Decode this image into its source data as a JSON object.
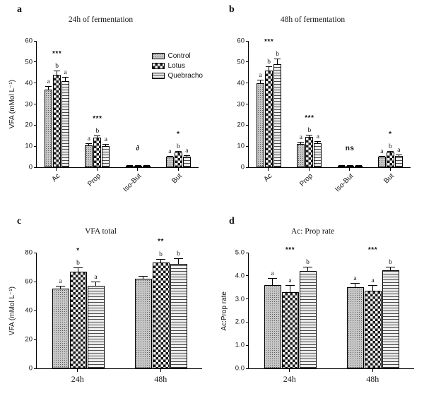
{
  "chart_data": [
    {
      "panel": "a",
      "type": "bar",
      "title": "24h of fermentation",
      "ylabel": "VFA (mMol L⁻¹)",
      "ylim": [
        0,
        60
      ],
      "yticks": [
        "0",
        "10",
        "20",
        "30",
        "40",
        "50",
        "60"
      ],
      "categories": [
        "Ac",
        "Prop",
        "Iso-But",
        "But"
      ],
      "series": [
        {
          "name": "Control",
          "pattern": "fine-checker",
          "values": [
            37,
            10.5,
            0.6,
            5
          ],
          "errors": [
            1.5,
            1,
            0.2,
            0.5
          ],
          "letters": [
            "a",
            "a",
            "",
            "a"
          ]
        },
        {
          "name": "Lotus",
          "pattern": "checkerboard",
          "values": [
            44,
            14,
            0.7,
            7
          ],
          "errors": [
            2,
            1,
            0.2,
            0.8
          ],
          "letters": [
            "b",
            "b",
            "",
            "b"
          ]
        },
        {
          "name": "Quebracho",
          "pattern": "horizontal-stripes",
          "values": [
            41,
            10,
            0.6,
            5
          ],
          "errors": [
            2,
            1,
            0.2,
            0.6
          ],
          "letters": [
            "a",
            "a",
            "",
            "a"
          ]
        }
      ],
      "group_sig": [
        "***",
        "***",
        "∂",
        "*"
      ],
      "legend": true
    },
    {
      "panel": "b",
      "type": "bar",
      "title": "48h of fermentation",
      "ylabel": "",
      "ylim": [
        0,
        60
      ],
      "yticks": [
        "0",
        "10",
        "20",
        "30",
        "40",
        "50",
        "60"
      ],
      "categories": [
        "Ac",
        "Prop",
        "Iso-But",
        "But"
      ],
      "series": [
        {
          "name": "Control",
          "pattern": "fine-checker",
          "values": [
            40,
            11,
            0.7,
            5
          ],
          "errors": [
            1.5,
            1,
            0.2,
            0.5
          ],
          "letters": [
            "a",
            "a",
            "",
            "a"
          ]
        },
        {
          "name": "Lotus",
          "pattern": "checkerboard",
          "values": [
            46,
            14.5,
            0.8,
            7
          ],
          "errors": [
            2,
            1,
            0.2,
            0.8
          ],
          "letters": [
            "b",
            "b",
            "",
            "b"
          ]
        },
        {
          "name": "Quebracho",
          "pattern": "horizontal-stripes",
          "values": [
            49,
            11.5,
            0.7,
            5.5
          ],
          "errors": [
            2.5,
            1,
            0.2,
            0.6
          ],
          "letters": [
            "b",
            "a",
            "",
            "a"
          ]
        }
      ],
      "group_sig": [
        "***",
        "***",
        "ns",
        "*"
      ],
      "legend": false
    },
    {
      "panel": "c",
      "type": "bar",
      "title": "VFA total",
      "ylabel": "VFA (mMol L⁻¹)",
      "ylim": [
        0,
        80
      ],
      "yticks": [
        "0",
        "20",
        "40",
        "60",
        "80"
      ],
      "categories": [
        "24h",
        "48h"
      ],
      "series": [
        {
          "name": "Control",
          "pattern": "fine-checker",
          "values": [
            55,
            62
          ],
          "errors": [
            2,
            2
          ],
          "letters": [
            "a",
            ""
          ]
        },
        {
          "name": "Lotus",
          "pattern": "checkerboard",
          "values": [
            67,
            73
          ],
          "errors": [
            3,
            2.5
          ],
          "letters": [
            "b",
            "b"
          ]
        },
        {
          "name": "Quebracho",
          "pattern": "horizontal-stripes",
          "values": [
            57,
            72
          ],
          "errors": [
            3,
            4
          ],
          "letters": [
            "a",
            "b"
          ]
        }
      ],
      "group_sig": [
        "*",
        "**"
      ],
      "legend": false
    },
    {
      "panel": "d",
      "type": "bar",
      "title": "Ac: Prop rate",
      "ylabel": "Ac:Prop rate",
      "ylim": [
        0,
        5
      ],
      "yticks": [
        "0.0",
        "1.0",
        "2.0",
        "3.0",
        "4.0",
        "5.0"
      ],
      "categories": [
        "24h",
        "48h"
      ],
      "series": [
        {
          "name": "Control",
          "pattern": "fine-checker",
          "values": [
            3.6,
            3.5
          ],
          "errors": [
            0.3,
            0.2
          ],
          "letters": [
            "a",
            "a"
          ]
        },
        {
          "name": "Lotus",
          "pattern": "checkerboard",
          "values": [
            3.3,
            3.35
          ],
          "errors": [
            0.3,
            0.25
          ],
          "letters": [
            "a",
            "a"
          ]
        },
        {
          "name": "Quebracho",
          "pattern": "horizontal-stripes",
          "values": [
            4.2,
            4.25
          ],
          "errors": [
            0.2,
            0.15
          ],
          "letters": [
            "b",
            "b"
          ]
        }
      ],
      "group_sig": [
        "***",
        "***"
      ],
      "legend": false
    }
  ],
  "style": {
    "axis_color": "#000000",
    "text_color": "#111111",
    "pattern_dark": "#1a1a1a",
    "pattern_light": "#f2f2f2",
    "control_gray": "#c6c6c6"
  }
}
